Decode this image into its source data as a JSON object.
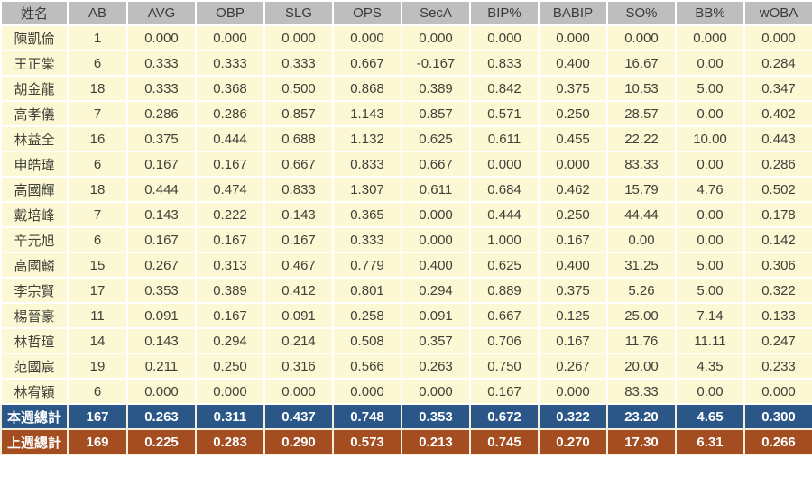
{
  "colors": {
    "header_bg": "#bebebe",
    "header_text": "#3b3b3b",
    "row_bg": "#fbf8d3",
    "row_text": "#41413a",
    "cell_border": "#ffffff",
    "summary_border": "#f3eeda",
    "this_week_bg": "#2a5788",
    "last_week_bg": "#a34d21",
    "summary_text": "#ffffff"
  },
  "chart_data": {
    "type": "table",
    "title": "",
    "columns": [
      "姓名",
      "AB",
      "AVG",
      "OBP",
      "SLG",
      "OPS",
      "SecA",
      "BIP%",
      "BABIP",
      "SO%",
      "BB%",
      "wOBA"
    ],
    "rows": [
      [
        "陳凱倫",
        "1",
        "0.000",
        "0.000",
        "0.000",
        "0.000",
        "0.000",
        "0.000",
        "0.000",
        "0.000",
        "0.000",
        "0.000"
      ],
      [
        "王正棠",
        "6",
        "0.333",
        "0.333",
        "0.333",
        "0.667",
        "-0.167",
        "0.833",
        "0.400",
        "16.67",
        "0.00",
        "0.284"
      ],
      [
        "胡金龍",
        "18",
        "0.333",
        "0.368",
        "0.500",
        "0.868",
        "0.389",
        "0.842",
        "0.375",
        "10.53",
        "5.00",
        "0.347"
      ],
      [
        "高孝儀",
        "7",
        "0.286",
        "0.286",
        "0.857",
        "1.143",
        "0.857",
        "0.571",
        "0.250",
        "28.57",
        "0.00",
        "0.402"
      ],
      [
        "林益全",
        "16",
        "0.375",
        "0.444",
        "0.688",
        "1.132",
        "0.625",
        "0.611",
        "0.455",
        "22.22",
        "10.00",
        "0.443"
      ],
      [
        "申皓瑋",
        "6",
        "0.167",
        "0.167",
        "0.667",
        "0.833",
        "0.667",
        "0.000",
        "0.000",
        "83.33",
        "0.00",
        "0.286"
      ],
      [
        "高國輝",
        "18",
        "0.444",
        "0.474",
        "0.833",
        "1.307",
        "0.611",
        "0.684",
        "0.462",
        "15.79",
        "4.76",
        "0.502"
      ],
      [
        "戴培峰",
        "7",
        "0.143",
        "0.222",
        "0.143",
        "0.365",
        "0.000",
        "0.444",
        "0.250",
        "44.44",
        "0.00",
        "0.178"
      ],
      [
        "辛元旭",
        "6",
        "0.167",
        "0.167",
        "0.167",
        "0.333",
        "0.000",
        "1.000",
        "0.167",
        "0.00",
        "0.00",
        "0.142"
      ],
      [
        "高國麟",
        "15",
        "0.267",
        "0.313",
        "0.467",
        "0.779",
        "0.400",
        "0.625",
        "0.400",
        "31.25",
        "5.00",
        "0.306"
      ],
      [
        "李宗賢",
        "17",
        "0.353",
        "0.389",
        "0.412",
        "0.801",
        "0.294",
        "0.889",
        "0.375",
        "5.26",
        "5.00",
        "0.322"
      ],
      [
        "楊晉豪",
        "11",
        "0.091",
        "0.167",
        "0.091",
        "0.258",
        "0.091",
        "0.667",
        "0.125",
        "25.00",
        "7.14",
        "0.133"
      ],
      [
        "林哲瑄",
        "14",
        "0.143",
        "0.294",
        "0.214",
        "0.508",
        "0.357",
        "0.706",
        "0.167",
        "11.76",
        "11.11",
        "0.247"
      ],
      [
        "范國宸",
        "19",
        "0.211",
        "0.250",
        "0.316",
        "0.566",
        "0.263",
        "0.750",
        "0.267",
        "20.00",
        "4.35",
        "0.233"
      ],
      [
        "林宥穎",
        "6",
        "0.000",
        "0.000",
        "0.000",
        "0.000",
        "0.000",
        "0.167",
        "0.000",
        "83.33",
        "0.00",
        "0.000"
      ]
    ],
    "summary_rows": [
      {
        "label": "本週總計",
        "bg": "#2a5788",
        "values": [
          "167",
          "0.263",
          "0.311",
          "0.437",
          "0.748",
          "0.353",
          "0.672",
          "0.322",
          "23.20",
          "4.65",
          "0.300"
        ]
      },
      {
        "label": "上週總計",
        "bg": "#a34d21",
        "values": [
          "169",
          "0.225",
          "0.283",
          "0.290",
          "0.573",
          "0.213",
          "0.745",
          "0.270",
          "17.30",
          "6.31",
          "0.266"
        ]
      }
    ],
    "layout_hints": {
      "header_position": "top",
      "grid": "on",
      "columns_count": 12,
      "rows_count": 17
    }
  }
}
